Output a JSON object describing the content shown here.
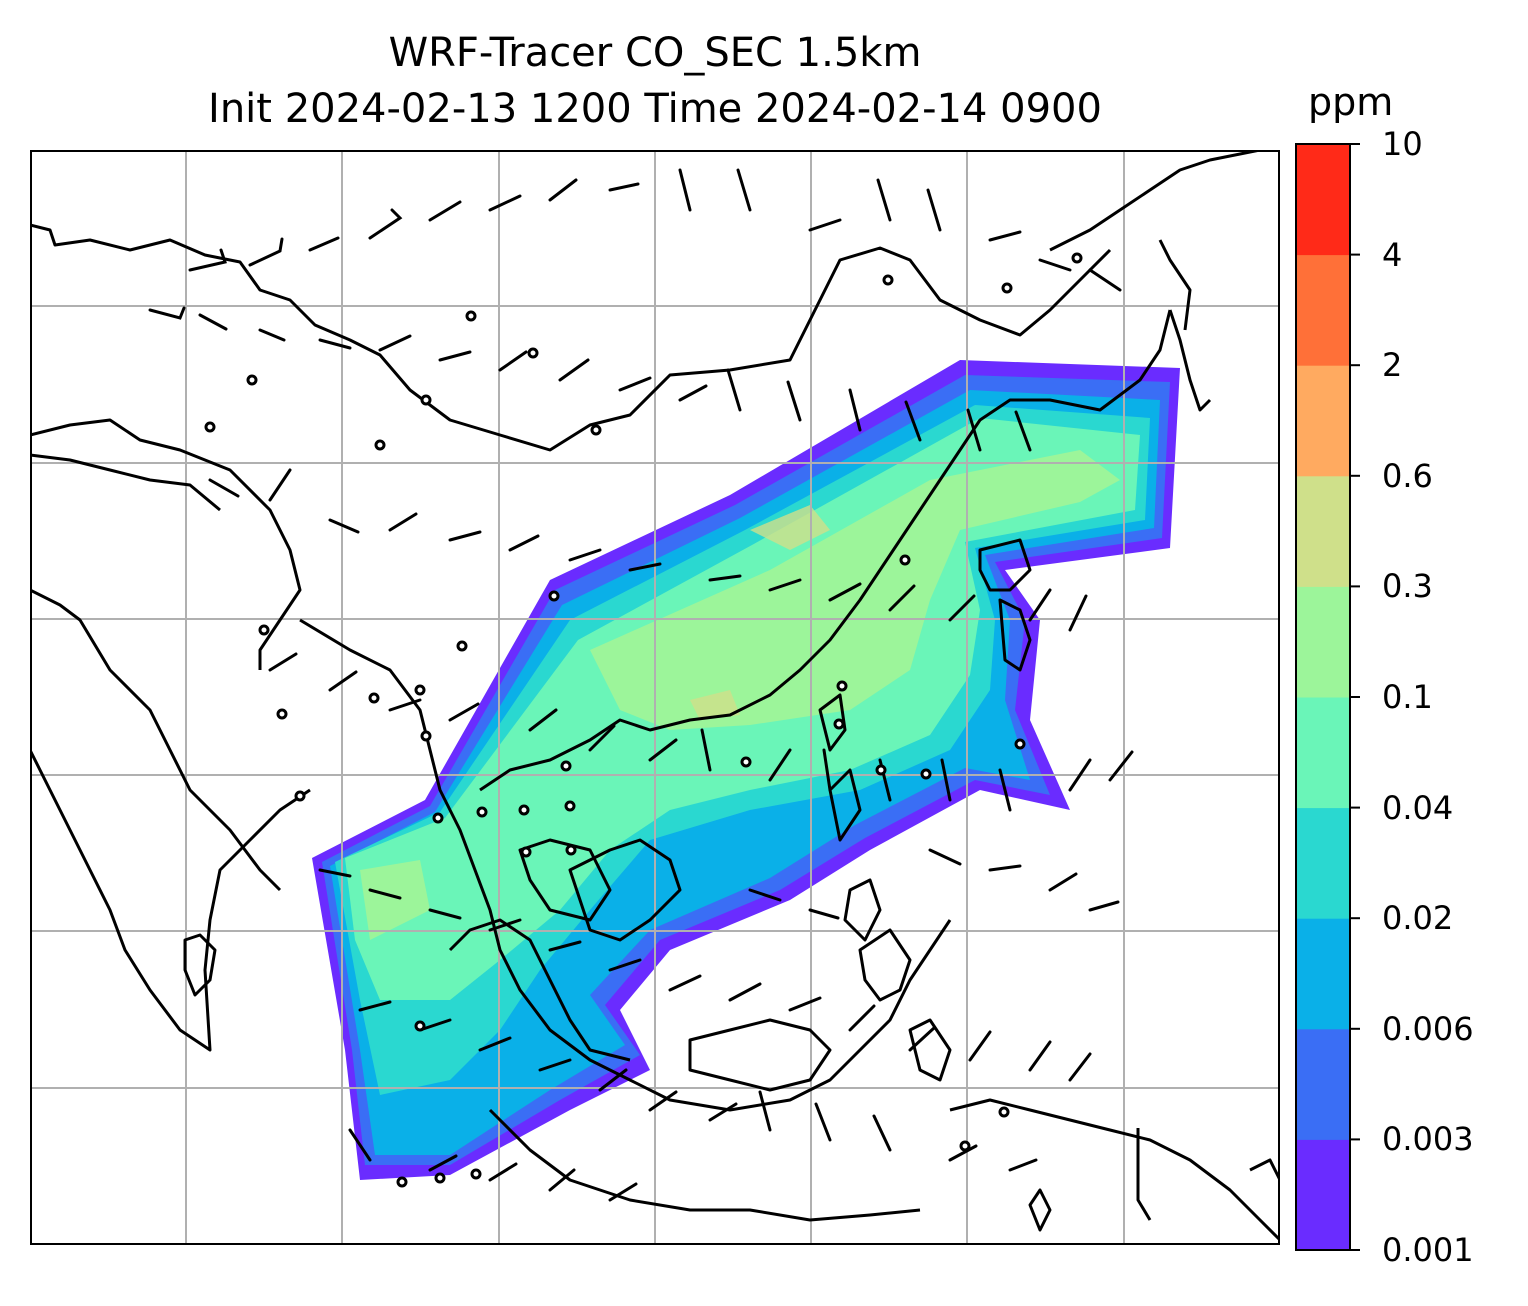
{
  "header": {
    "title_line1": "WRF-Tracer CO_SEC 1.5km",
    "title_line2": "Init 2024-02-13 1200 Time 2024-02-14 0900"
  },
  "colorbar": {
    "unit": "ppm",
    "ticks": [
      "0.001",
      "0.003",
      "0.006",
      "0.02",
      "0.04",
      "0.1",
      "0.3",
      "0.6",
      "2",
      "4",
      "10"
    ],
    "colors": [
      "#6a2cff",
      "#3a6ef5",
      "#0ab0e8",
      "#2ad8d0",
      "#6af5b8",
      "#9cf59a",
      "#cfe08a",
      "#ffaa60",
      "#ff7038",
      "#ff2a18"
    ]
  },
  "map": {
    "contour_colors_low_to_high": [
      "#6a2cff",
      "#3a6ef5",
      "#0ab0e8",
      "#2ad8d0",
      "#6af5b8",
      "#9cf59a",
      "#cfe08a"
    ],
    "gridlines": true
  }
}
